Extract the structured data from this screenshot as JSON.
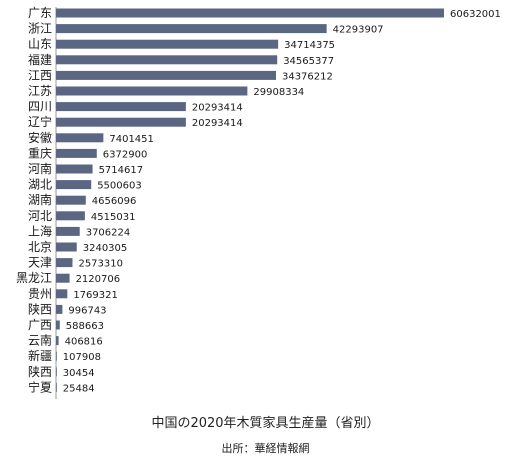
{
  "chart_data": {
    "type": "bar",
    "orientation": "horizontal",
    "title": "中国の2020年木質家具生産量（省別）",
    "source": "出所：華経情報網",
    "categories": [
      "广东",
      "浙江",
      "山东",
      "福建",
      "江西",
      "江苏",
      "四川",
      "辽宁",
      "安徽",
      "重庆",
      "河南",
      "湖北",
      "湖南",
      "河北",
      "上海",
      "北京",
      "天津",
      "黑龙江",
      "贵州",
      "陕西",
      "广西",
      "云南",
      "新疆",
      "陕西",
      "宁夏"
    ],
    "values": [
      60632001,
      42293907,
      34714375,
      34565377,
      34376212,
      29908334,
      20293414,
      20293414,
      7401451,
      6372900,
      5714617,
      5500603,
      4656096,
      4515031,
      3706224,
      3240305,
      2573310,
      2120706,
      1769321,
      996743,
      588663,
      406816,
      107908,
      30454,
      25484
    ],
    "value_labels": [
      "60632001",
      "42293907",
      "34714375",
      "34565377",
      "34376212",
      "29908334",
      "20293414",
      "20293414",
      "7401451",
      "6372900",
      "5714617",
      "5500603",
      "4656096",
      "4515031",
      "3706224",
      "3240305",
      "2573310",
      "2120706",
      "1769321",
      "996743",
      "588663",
      "406816",
      "107908",
      "30454",
      "25484"
    ],
    "bar_color": "#5b6682",
    "grid": false,
    "legend": "none"
  }
}
